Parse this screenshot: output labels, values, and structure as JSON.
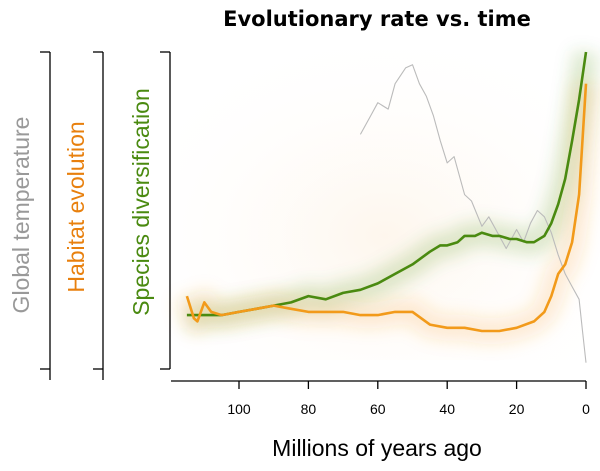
{
  "chart_data": {
    "type": "line",
    "title": "Evolutionary rate vs. time",
    "xlabel": "Millions of years ago",
    "x_ticks": [
      100,
      80,
      60,
      40,
      20,
      0
    ],
    "xlim": [
      118,
      0
    ],
    "x_reversed": true,
    "y_axis_labels": [
      {
        "text": "Global temperature",
        "color": "#999999"
      },
      {
        "text": "Habitat evolution",
        "color": "#E8800E"
      },
      {
        "text": "Species diversification",
        "color": "#4A8A10"
      }
    ],
    "series": [
      {
        "name": "Species diversification",
        "color": "#4A8A10",
        "x": [
          115,
          110,
          105,
          100,
          95,
          90,
          85,
          80,
          75,
          70,
          65,
          60,
          55,
          50,
          45,
          42,
          40,
          37,
          35,
          32,
          30,
          27,
          25,
          22,
          20,
          17,
          15,
          12,
          10,
          8,
          6,
          4,
          2,
          0
        ],
        "values": [
          0.17,
          0.17,
          0.17,
          0.18,
          0.19,
          0.2,
          0.21,
          0.23,
          0.22,
          0.24,
          0.25,
          0.27,
          0.3,
          0.33,
          0.37,
          0.39,
          0.39,
          0.4,
          0.42,
          0.42,
          0.43,
          0.42,
          0.42,
          0.41,
          0.41,
          0.4,
          0.4,
          0.42,
          0.46,
          0.52,
          0.6,
          0.72,
          0.85,
          1.0
        ]
      },
      {
        "name": "Habitat evolution",
        "color": "#F29A1A",
        "x": [
          115,
          113,
          112,
          110,
          108,
          105,
          100,
          95,
          90,
          85,
          80,
          75,
          70,
          65,
          60,
          55,
          50,
          45,
          40,
          35,
          30,
          25,
          20,
          15,
          12,
          10,
          8,
          6,
          4,
          2,
          0
        ],
        "values": [
          0.23,
          0.16,
          0.15,
          0.21,
          0.18,
          0.17,
          0.18,
          0.19,
          0.2,
          0.19,
          0.18,
          0.18,
          0.18,
          0.17,
          0.17,
          0.18,
          0.18,
          0.14,
          0.13,
          0.13,
          0.12,
          0.12,
          0.13,
          0.15,
          0.18,
          0.23,
          0.3,
          0.33,
          0.4,
          0.55,
          0.9
        ]
      },
      {
        "name": "Global temperature",
        "color": "#BBBBBB",
        "x": [
          65,
          62,
          60,
          57,
          55,
          52,
          50,
          48,
          46,
          44,
          42,
          40,
          38,
          35,
          33,
          30,
          28,
          25,
          23,
          20,
          18,
          16,
          14,
          12,
          10,
          8,
          6,
          4,
          2,
          1,
          0
        ],
        "values": [
          0.74,
          0.8,
          0.84,
          0.82,
          0.9,
          0.95,
          0.96,
          0.9,
          0.86,
          0.8,
          0.72,
          0.65,
          0.67,
          0.55,
          0.53,
          0.45,
          0.48,
          0.42,
          0.38,
          0.44,
          0.4,
          0.46,
          0.5,
          0.48,
          0.43,
          0.36,
          0.3,
          0.26,
          0.22,
          0.12,
          0.02
        ]
      }
    ]
  }
}
